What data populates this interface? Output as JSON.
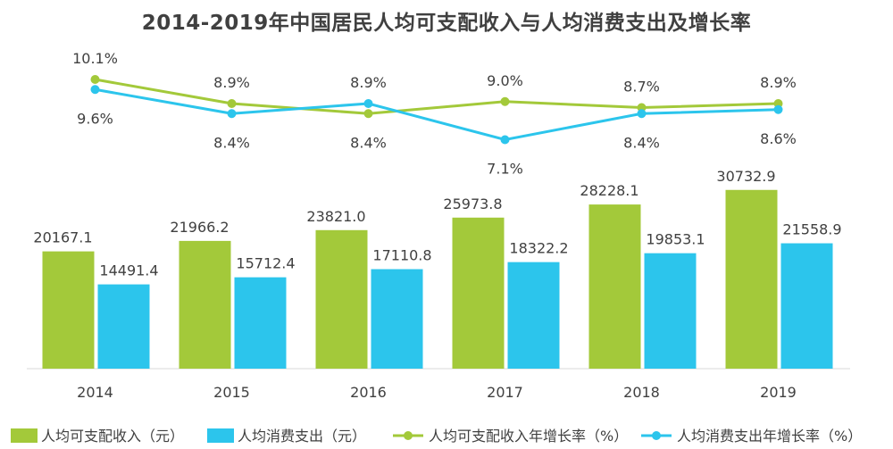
{
  "chart_data": {
    "type": "bar",
    "title": "2014-2019年中国居民人均可支配收入与人均消费支出及增长率",
    "categories": [
      "2014",
      "2015",
      "2016",
      "2017",
      "2018",
      "2019"
    ],
    "bar_series": [
      {
        "name": "人均可支配收入（元）",
        "values": [
          20167.1,
          21966.2,
          23821.0,
          25973.8,
          28228.1,
          30732.9
        ],
        "labels": [
          "20167.1",
          "21966.2",
          "23821.0",
          "25973.8",
          "28228.1",
          "30732.9"
        ],
        "color": "#a3c93a"
      },
      {
        "name": "人均消费支出（元）",
        "values": [
          14491.4,
          15712.4,
          17110.8,
          18322.2,
          19853.1,
          21558.9
        ],
        "labels": [
          "14491.4",
          "15712.4",
          "17110.8",
          "18322.2",
          "19853.1",
          "21558.9"
        ],
        "color": "#2cc5ec"
      }
    ],
    "line_series": [
      {
        "name": "人均可支配收入年增长率（%）",
        "values": [
          10.1,
          8.9,
          8.4,
          9.0,
          8.7,
          8.9
        ],
        "labels": [
          "10.1%",
          "8.9%",
          "8.4%",
          "9.0%",
          "8.7%",
          "8.9%"
        ],
        "label_position": [
          "above",
          "above",
          "below",
          "above",
          "above",
          "above"
        ],
        "color": "#a3c93a"
      },
      {
        "name": "人均消费支出年增长率（%）",
        "values": [
          9.6,
          8.4,
          8.9,
          7.1,
          8.4,
          8.6
        ],
        "labels": [
          "9.6%",
          "8.4%",
          "8.9%",
          "7.1%",
          "8.4%",
          "8.6%"
        ],
        "label_position": [
          "below",
          "below",
          "above",
          "below",
          "below",
          "below"
        ],
        "color": "#2cc5ec"
      }
    ],
    "bar_ylim": [
      0,
      33000
    ],
    "line_ylim": [
      6.5,
      10.5
    ],
    "grid": false,
    "legend_position": "bottom"
  }
}
